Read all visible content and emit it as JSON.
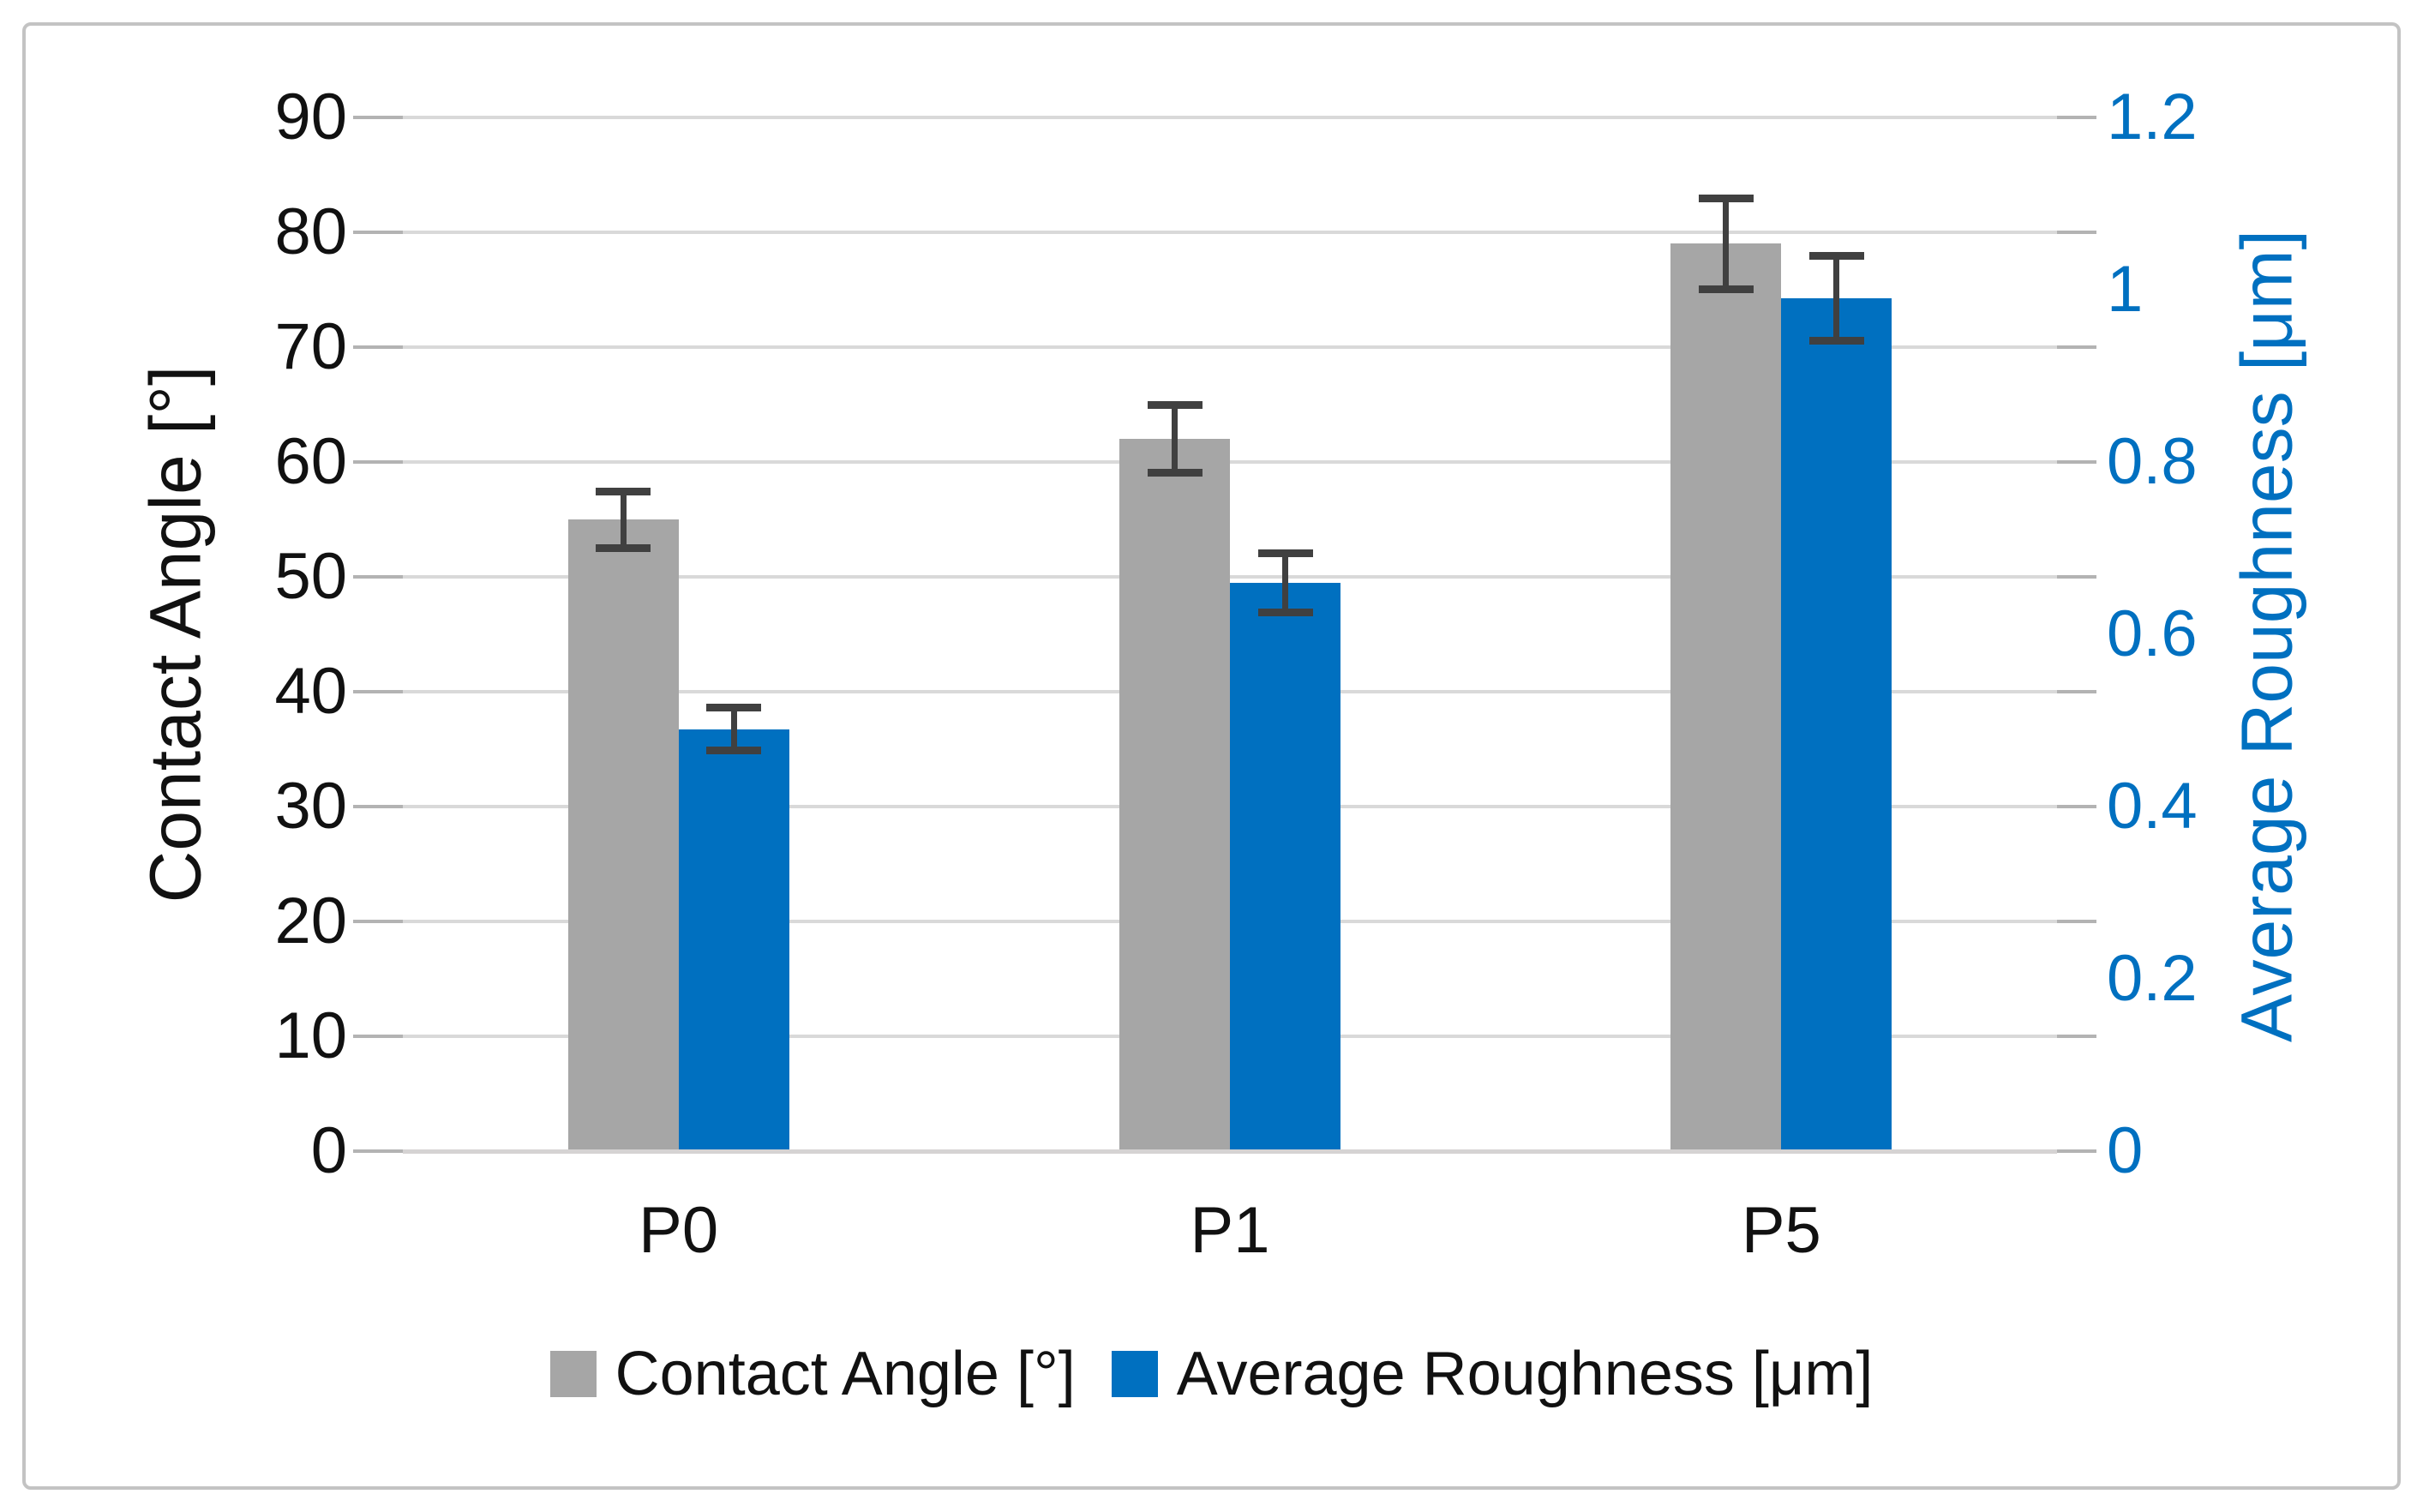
{
  "figure": {
    "background": "#ffffff",
    "border_color": "#c3c3c3"
  },
  "chart_data": {
    "type": "bar",
    "categories": [
      "P0",
      "P1",
      "P5"
    ],
    "series": [
      {
        "name": "Contact Angle [°]",
        "axis": "left",
        "color": "#a6a6a6",
        "values": [
          55,
          62,
          79
        ],
        "errors": [
          2.5,
          3,
          4
        ]
      },
      {
        "name": "Average Roughness [μm]",
        "axis": "right",
        "color": "#0070c0",
        "values": [
          0.49,
          0.66,
          0.99
        ],
        "errors": [
          0.025,
          0.035,
          0.05
        ]
      }
    ],
    "left_axis": {
      "title": "Contact Angle [°]",
      "min": 0,
      "max": 90,
      "tick_values": [
        0,
        10,
        20,
        30,
        40,
        50,
        60,
        70,
        80,
        90
      ],
      "tick_labels": [
        "0",
        "10",
        "20",
        "30",
        "40",
        "50",
        "60",
        "70",
        "80",
        "90"
      ],
      "text_color": "#111111"
    },
    "right_axis": {
      "title": "Average Roughness [μm]",
      "min": 0,
      "max": 1.2,
      "tick_values": [
        0,
        0.2,
        0.4,
        0.6,
        0.8,
        1,
        1.2
      ],
      "tick_labels": [
        "0",
        "0.2",
        "0.4",
        "0.6",
        "0.8",
        "1",
        "1.2"
      ],
      "text_color": "#0070c0"
    },
    "grid": {
      "color": "#d9d9d9",
      "baseline_color": "#d5d3d3",
      "tick_color": "#b3b3b3"
    },
    "error_bar_color": "#404040",
    "legend_position": "bottom-center",
    "legend": [
      "Contact Angle [°]",
      "Average Roughness [μm]"
    ]
  }
}
